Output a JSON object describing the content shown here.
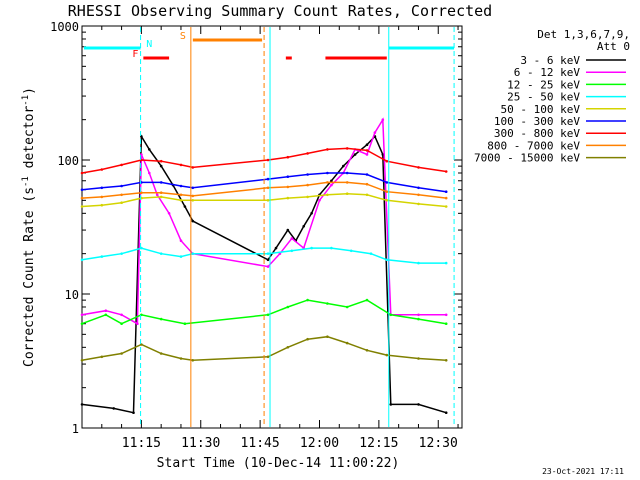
{
  "chart_data": {
    "type": "line",
    "title": "RHESSI Observing Summary Count Rates, Corrected",
    "xlabel": "Start Time (10-Dec-14 11:00:22)",
    "ylabel": "Corrected Count Rate (s",
    "ylabel_sup1": "-1",
    "ylabel_mid": " detector",
    "ylabel_sup2": "-1",
    "ylabel_end": ")",
    "footer": "23-Oct-2021 17:11",
    "y_scale": "log",
    "ylim": [
      1,
      1000
    ],
    "xlim_minutes": [
      0,
      96
    ],
    "x_ticks": [
      {
        "label": "11:15",
        "min": 15
      },
      {
        "label": "11:30",
        "min": 30
      },
      {
        "label": "11:45",
        "min": 45
      },
      {
        "label": "12:00",
        "min": 60
      },
      {
        "label": "12:15",
        "min": 75
      },
      {
        "label": "12:30",
        "min": 90
      }
    ],
    "y_ticks": [
      {
        "label": "1",
        "v": 1
      },
      {
        "label": "10",
        "v": 10
      },
      {
        "label": "100",
        "v": 100
      },
      {
        "label": "1000",
        "v": 1000
      }
    ],
    "legend": {
      "header": [
        "Det 1,3,6,7,9,",
        "Att 0"
      ],
      "placement": "right"
    },
    "series": [
      {
        "name": "3 - 6 keV",
        "color": "#000000",
        "points": [
          [
            0,
            1.5
          ],
          [
            8,
            1.4
          ],
          [
            13,
            1.3
          ],
          [
            15,
            150
          ],
          [
            17,
            120
          ],
          [
            20,
            90
          ],
          [
            23,
            65
          ],
          [
            26,
            45
          ],
          [
            28,
            35
          ],
          [
            47,
            18
          ],
          [
            49,
            22
          ],
          [
            52,
            30
          ],
          [
            54,
            25
          ],
          [
            56,
            32
          ],
          [
            58,
            40
          ],
          [
            60,
            55
          ],
          [
            63,
            70
          ],
          [
            66,
            90
          ],
          [
            69,
            110
          ],
          [
            72,
            130
          ],
          [
            74,
            150
          ],
          [
            76,
            110
          ],
          [
            78,
            1.5
          ],
          [
            85,
            1.5
          ],
          [
            92,
            1.3
          ]
        ]
      },
      {
        "name": "6 - 12 keV",
        "color": "#ff00ff",
        "points": [
          [
            0,
            7
          ],
          [
            6,
            7.5
          ],
          [
            10,
            7
          ],
          [
            14,
            6
          ],
          [
            15,
            110
          ],
          [
            17,
            80
          ],
          [
            19,
            55
          ],
          [
            22,
            40
          ],
          [
            25,
            25
          ],
          [
            28,
            20
          ],
          [
            47,
            16
          ],
          [
            50,
            20
          ],
          [
            53,
            26
          ],
          [
            56,
            22
          ],
          [
            60,
            50
          ],
          [
            63,
            65
          ],
          [
            66,
            80
          ],
          [
            69,
            120
          ],
          [
            72,
            110
          ],
          [
            74,
            160
          ],
          [
            76,
            200
          ],
          [
            78,
            7
          ],
          [
            85,
            7
          ],
          [
            92,
            7
          ]
        ]
      },
      {
        "name": "12 - 25 keV",
        "color": "#00ff00",
        "points": [
          [
            0,
            6
          ],
          [
            6,
            7
          ],
          [
            10,
            6
          ],
          [
            15,
            7
          ],
          [
            20,
            6.5
          ],
          [
            26,
            6
          ],
          [
            47,
            7
          ],
          [
            52,
            8
          ],
          [
            57,
            9
          ],
          [
            62,
            8.5
          ],
          [
            67,
            8
          ],
          [
            72,
            9
          ],
          [
            78,
            7
          ],
          [
            85,
            6.5
          ],
          [
            92,
            6
          ]
        ]
      },
      {
        "name": "25 - 50 keV",
        "color": "#00ffff",
        "points": [
          [
            0,
            18
          ],
          [
            5,
            19
          ],
          [
            10,
            20
          ],
          [
            15,
            22
          ],
          [
            20,
            20
          ],
          [
            25,
            19
          ],
          [
            28,
            20
          ],
          [
            47,
            20
          ],
          [
            53,
            21
          ],
          [
            58,
            22
          ],
          [
            63,
            22
          ],
          [
            68,
            21
          ],
          [
            73,
            20
          ],
          [
            77,
            18
          ],
          [
            85,
            17
          ],
          [
            92,
            17
          ]
        ]
      },
      {
        "name": "50 - 100 keV",
        "color": "#d4d400",
        "points": [
          [
            0,
            45
          ],
          [
            5,
            46
          ],
          [
            10,
            48
          ],
          [
            15,
            52
          ],
          [
            20,
            53
          ],
          [
            25,
            50
          ],
          [
            28,
            50
          ],
          [
            47,
            50
          ],
          [
            52,
            52
          ],
          [
            57,
            53
          ],
          [
            62,
            55
          ],
          [
            67,
            56
          ],
          [
            72,
            55
          ],
          [
            77,
            50
          ],
          [
            85,
            47
          ],
          [
            92,
            45
          ]
        ]
      },
      {
        "name": "100 - 300 keV",
        "color": "#0000ff",
        "points": [
          [
            0,
            60
          ],
          [
            5,
            62
          ],
          [
            10,
            64
          ],
          [
            15,
            68
          ],
          [
            20,
            68
          ],
          [
            25,
            64
          ],
          [
            28,
            62
          ],
          [
            47,
            72
          ],
          [
            52,
            75
          ],
          [
            57,
            78
          ],
          [
            62,
            80
          ],
          [
            67,
            80
          ],
          [
            72,
            78
          ],
          [
            77,
            68
          ],
          [
            85,
            62
          ],
          [
            92,
            58
          ]
        ]
      },
      {
        "name": "300 - 800 keV",
        "color": "#ff0000",
        "points": [
          [
            0,
            80
          ],
          [
            5,
            85
          ],
          [
            10,
            92
          ],
          [
            15,
            100
          ],
          [
            20,
            98
          ],
          [
            25,
            92
          ],
          [
            28,
            88
          ],
          [
            47,
            100
          ],
          [
            52,
            105
          ],
          [
            57,
            112
          ],
          [
            62,
            120
          ],
          [
            67,
            122
          ],
          [
            72,
            118
          ],
          [
            77,
            98
          ],
          [
            85,
            88
          ],
          [
            92,
            82
          ]
        ]
      },
      {
        "name": "800 - 7000 keV",
        "color": "#ff8000",
        "points": [
          [
            0,
            52
          ],
          [
            5,
            53
          ],
          [
            10,
            55
          ],
          [
            15,
            57
          ],
          [
            20,
            57
          ],
          [
            25,
            55
          ],
          [
            28,
            54
          ],
          [
            47,
            62
          ],
          [
            52,
            63
          ],
          [
            57,
            65
          ],
          [
            62,
            68
          ],
          [
            67,
            68
          ],
          [
            72,
            66
          ],
          [
            77,
            58
          ],
          [
            85,
            55
          ],
          [
            92,
            52
          ]
        ]
      },
      {
        "name": "7000 - 15000 keV",
        "color": "#808000",
        "points": [
          [
            0,
            3.2
          ],
          [
            5,
            3.4
          ],
          [
            10,
            3.6
          ],
          [
            15,
            4.2
          ],
          [
            20,
            3.6
          ],
          [
            25,
            3.3
          ],
          [
            28,
            3.2
          ],
          [
            47,
            3.4
          ],
          [
            52,
            4.0
          ],
          [
            57,
            4.6
          ],
          [
            62,
            4.8
          ],
          [
            67,
            4.3
          ],
          [
            72,
            3.8
          ],
          [
            77,
            3.5
          ],
          [
            85,
            3.3
          ],
          [
            92,
            3.2
          ]
        ]
      }
    ],
    "annotations": {
      "vertical_lines": [
        {
          "min": 14.8,
          "color": "#00ffff",
          "style": "dashed"
        },
        {
          "min": 27.5,
          "color": "#ff8000",
          "style": "solid"
        },
        {
          "min": 46.0,
          "color": "#ff8000",
          "style": "dashed"
        },
        {
          "min": 47.5,
          "color": "#00ffff",
          "style": "solid"
        },
        {
          "min": 77.5,
          "color": "#00ffff",
          "style": "solid"
        },
        {
          "min": 94.0,
          "color": "#00ffff",
          "style": "dashed"
        }
      ],
      "flag_bars": [
        {
          "start": 0.5,
          "end": 14.8,
          "level": 1,
          "color": "#00ffff"
        },
        {
          "start": 77.5,
          "end": 94.0,
          "level": 1,
          "color": "#00ffff"
        },
        {
          "start": 28.0,
          "end": 45.5,
          "level": 2,
          "color": "#ff8000"
        },
        {
          "start": 15.5,
          "end": 22.0,
          "level": 3,
          "color": "#ff0000"
        },
        {
          "start": 51.5,
          "end": 53.0,
          "level": 3,
          "color": "#ff0000"
        },
        {
          "start": 61.5,
          "end": 77.0,
          "level": 3,
          "color": "#ff0000"
        }
      ],
      "flag_labels": [
        {
          "text": "N",
          "min": 17.0,
          "level": 1,
          "color": "#00ffff"
        },
        {
          "text": "S",
          "min": 25.5,
          "level": 2,
          "color": "#ff8000"
        },
        {
          "text": "F",
          "min": 13.5,
          "level": 3,
          "color": "#ff0000"
        }
      ]
    }
  }
}
